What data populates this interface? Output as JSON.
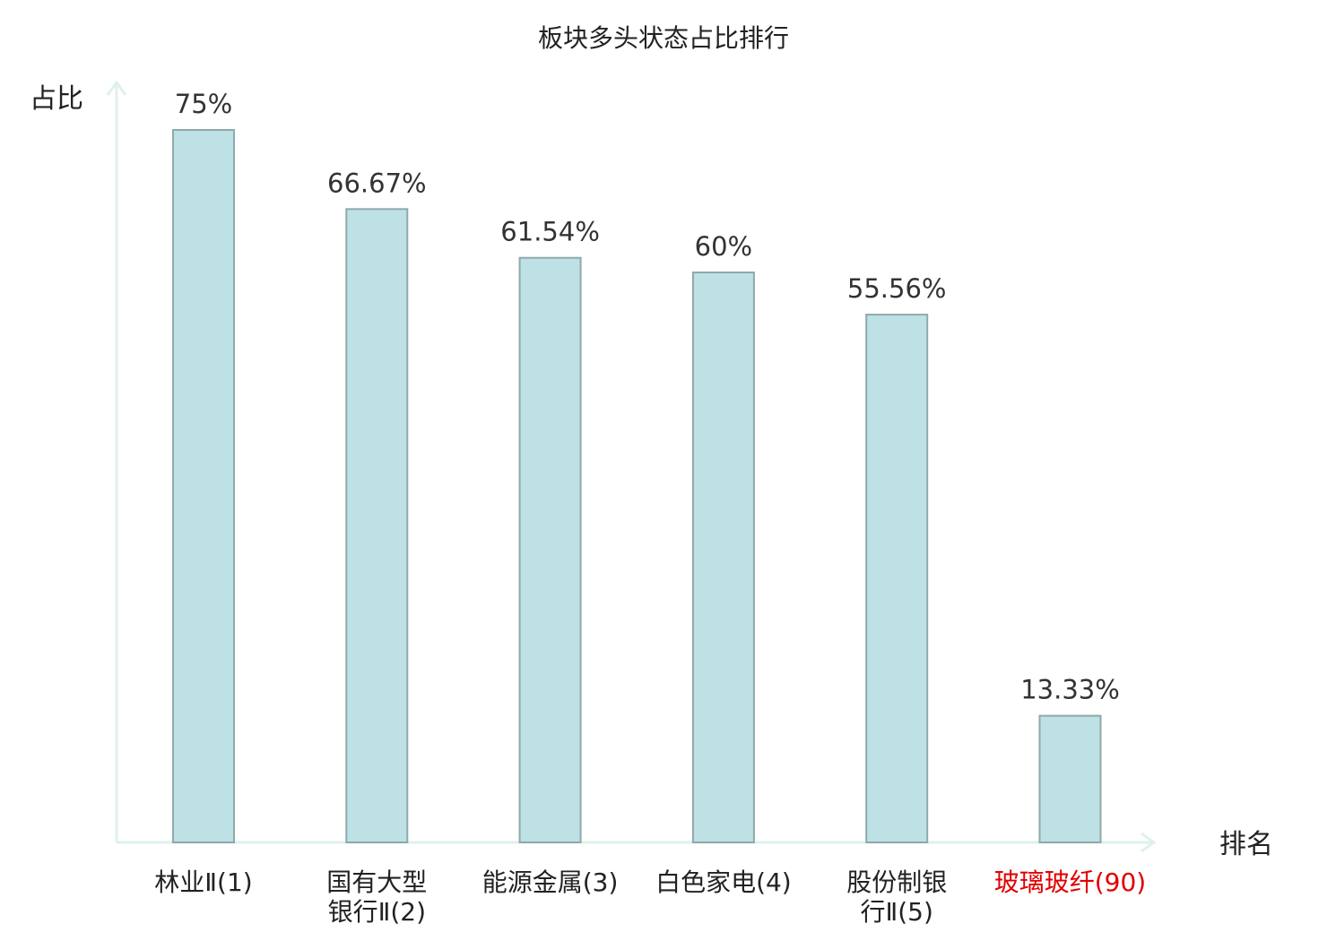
{
  "chart_data": {
    "type": "bar",
    "title": "板块多头状态占比排行",
    "ylabel": "占比",
    "xlabel": "排名",
    "ylim": [
      0,
      80
    ],
    "grid": false,
    "categories": [
      [
        "林业Ⅱ(1)"
      ],
      [
        "国有大型",
        "银行Ⅱ(2)"
      ],
      [
        "能源金属(3)"
      ],
      [
        "白色家电(4)"
      ],
      [
        "股份制银",
        "行Ⅱ(5)"
      ],
      [
        "玻璃玻纤(90)"
      ]
    ],
    "values": [
      75,
      66.67,
      61.54,
      60,
      55.56,
      13.33
    ],
    "value_labels": [
      "75%",
      "66.67%",
      "61.54%",
      "60%",
      "55.56%",
      "13.33%"
    ],
    "highlight_index": 5,
    "colors": {
      "bar_fill": "#bde1e4",
      "bar_stroke": "#8fa9aa",
      "axis": "#dff1ee",
      "highlight_text": "#e00000"
    }
  }
}
